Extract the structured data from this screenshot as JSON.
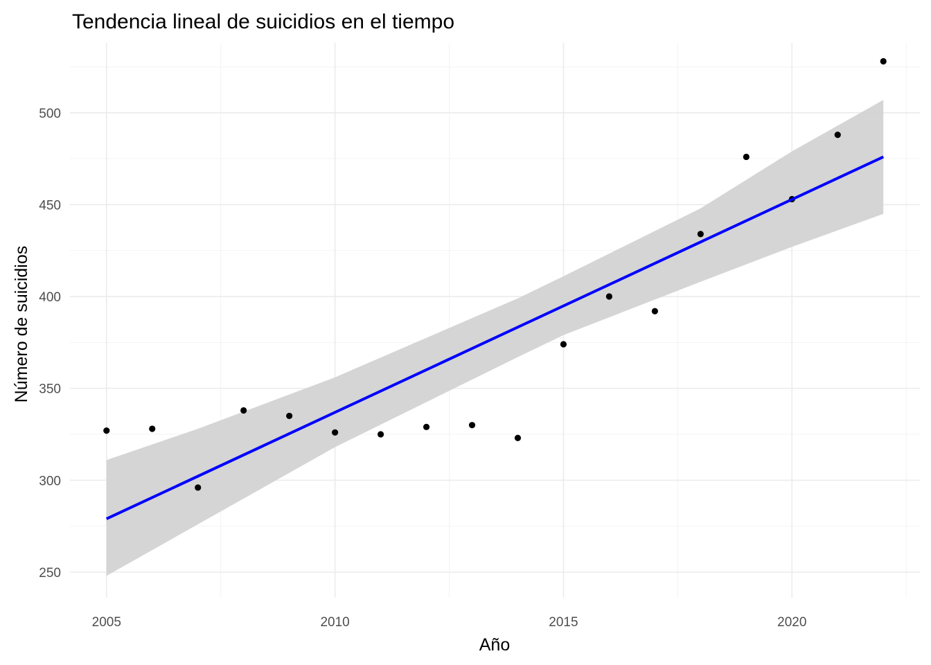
{
  "chart_data": {
    "type": "scatter",
    "title": "Tendencia lineal de suicidios en el tiempo",
    "xlabel": "Año",
    "ylabel": "Número de suicidios",
    "xlim": [
      2004.2,
      2022.8
    ],
    "ylim": [
      236,
      538
    ],
    "x_ticks": [
      2005,
      2010,
      2015,
      2020
    ],
    "x_tick_labels": [
      "2005",
      "2010",
      "2015",
      "2020"
    ],
    "y_ticks": [
      250,
      300,
      350,
      400,
      450,
      500
    ],
    "y_tick_labels": [
      "250",
      "300",
      "350",
      "400",
      "450",
      "500"
    ],
    "grid": true,
    "legend": "none",
    "points": {
      "x": [
        2005,
        2006,
        2007,
        2008,
        2009,
        2010,
        2011,
        2012,
        2013,
        2014,
        2015,
        2016,
        2017,
        2018,
        2019,
        2020,
        2021,
        2022
      ],
      "y": [
        327,
        328,
        296,
        338,
        335,
        326,
        325,
        329,
        330,
        323,
        374,
        400,
        392,
        434,
        476,
        453,
        488,
        528
      ],
      "color": "#000000"
    },
    "trend_line": {
      "method": "linear",
      "x": [
        2005,
        2022
      ],
      "y": [
        279,
        476
      ],
      "color": "#0000ff"
    },
    "confidence_band": {
      "x": [
        2005,
        2007,
        2010,
        2014,
        2015,
        2018,
        2020,
        2022
      ],
      "lower": [
        248,
        276,
        318,
        367,
        379,
        408,
        427,
        445
      ],
      "upper": [
        311,
        328,
        356,
        399,
        411,
        448,
        479,
        507
      ],
      "color": "#d3d3d3"
    }
  },
  "colors": {
    "background": "#ffffff",
    "grid": "#ebebeb",
    "points": "#000000",
    "trend": "#0000ff",
    "band": "#d3d3d3"
  }
}
